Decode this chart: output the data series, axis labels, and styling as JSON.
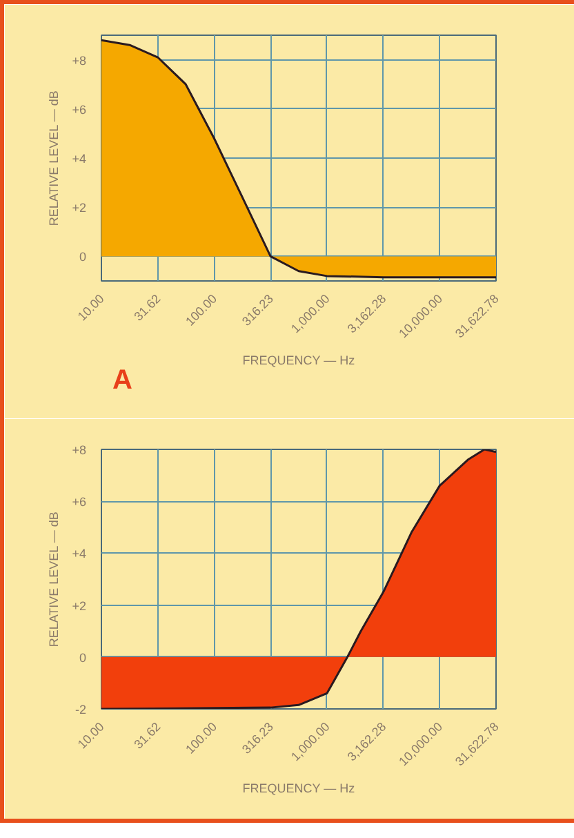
{
  "chart_data": [
    {
      "type": "area",
      "xlabel": "FREQUENCY — Hz",
      "ylabel": "RELATIVE LEVEL — dB",
      "log": "x",
      "grid": true,
      "annotations": [
        "A"
      ],
      "xlim": [
        10,
        31622.78
      ],
      "ylim": [
        -1,
        9
      ],
      "xticks": [
        {
          "value": 10,
          "label": "10.00"
        },
        {
          "value": 31.62,
          "label": "31.62"
        },
        {
          "value": 100,
          "label": "100.00"
        },
        {
          "value": 316.23,
          "label": "316.23"
        },
        {
          "value": 1000,
          "label": "1,000.00"
        },
        {
          "value": 3162.28,
          "label": "3,162.28"
        },
        {
          "value": 10000,
          "label": "10,000.00"
        },
        {
          "value": 31622.78,
          "label": "31,622.78"
        }
      ],
      "yticks": [
        {
          "value": 8,
          "label": "+8"
        },
        {
          "value": 6,
          "label": "+6"
        },
        {
          "value": 4,
          "label": "+4"
        },
        {
          "value": 2,
          "label": "+2"
        },
        0
      ],
      "x": [
        10,
        17.8,
        31.62,
        56,
        100,
        178,
        316.23,
        562,
        1000,
        3162.28,
        31622.78
      ],
      "series": [
        {
          "color": "#f5a800",
          "values": [
            8.8,
            8.6,
            8.1,
            7.0,
            4.8,
            2.4,
            0,
            -0.6,
            -0.8,
            -0.85,
            -0.85
          ]
        }
      ]
    },
    {
      "type": "area",
      "xlabel": "FREQUENCY — Hz",
      "ylabel": "RELATIVE LEVEL — dB",
      "log": "x",
      "grid": true,
      "xlim": [
        10,
        31622.78
      ],
      "ylim": [
        -2,
        8
      ],
      "xticks": [
        {
          "value": 10,
          "label": "10.00"
        },
        {
          "value": 31.62,
          "label": "31.62"
        },
        {
          "value": 100,
          "label": "100.00"
        },
        {
          "value": 316.23,
          "label": "316.23"
        },
        {
          "value": 1000,
          "label": "1,000.00"
        },
        {
          "value": 3162.28,
          "label": "3,162.28"
        },
        {
          "value": 10000,
          "label": "10,000.00"
        },
        {
          "value": 31622.78,
          "label": "31,622.78"
        }
      ],
      "yticks": [
        {
          "value": 8,
          "label": "+8"
        },
        {
          "value": 6,
          "label": "+6"
        },
        {
          "value": 4,
          "label": "+4"
        },
        {
          "value": 2,
          "label": "+2"
        },
        0,
        -2
      ],
      "x": [
        10,
        316.23,
        562,
        1000,
        1520,
        2000,
        3162.28,
        5620,
        10000,
        17780,
        25000,
        31622.78
      ],
      "series": [
        {
          "color": "#f23f0c",
          "values": [
            -2,
            -1.95,
            -1.85,
            -1.4,
            0,
            1.0,
            2.5,
            4.8,
            6.6,
            7.6,
            8.0,
            7.9
          ]
        }
      ]
    }
  ]
}
